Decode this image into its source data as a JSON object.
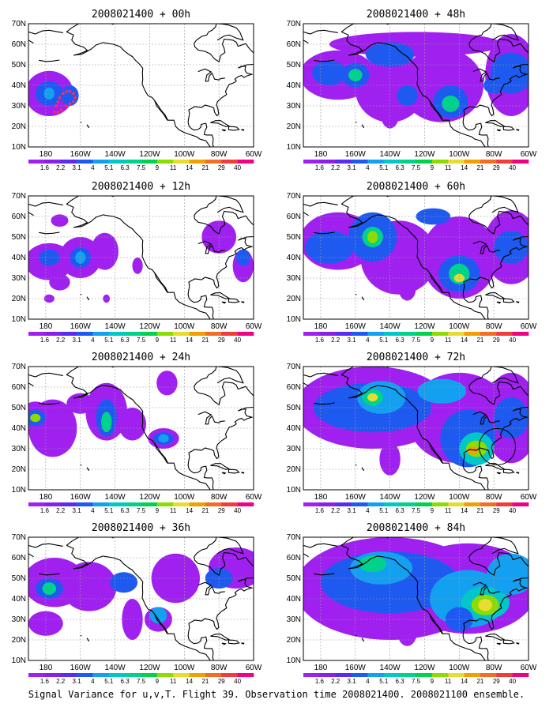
{
  "caption": "Signal Variance for u,v,T. Flight 39. Observation time 2008021400. 2008021100 ensemble.",
  "colorbar": {
    "labels": [
      "1.6",
      "2.2",
      "3.1",
      "4",
      "5.1",
      "6.3",
      "7.5",
      "9",
      "11",
      "14",
      "21",
      "29",
      "40"
    ],
    "colors": [
      "#a020f0",
      "#8a20e6",
      "#5a2cf0",
      "#1e5af0",
      "#14a0f0",
      "#00c8c8",
      "#00d28c",
      "#00d250",
      "#8cdc00",
      "#e6dc32",
      "#f0a000",
      "#f06e28",
      "#f03c3c",
      "#f00082"
    ]
  },
  "axes": {
    "lon_labels": [
      "180",
      "160W",
      "140W",
      "120W",
      "100W",
      "80W",
      "60W"
    ],
    "lat_labels": [
      "10N",
      "20N",
      "30N",
      "40N",
      "50N",
      "60N",
      "70N"
    ]
  },
  "panels": [
    {
      "id": "p00",
      "title": "2008021400 + 00h"
    },
    {
      "id": "p12",
      "title": "2008021400 + 12h"
    },
    {
      "id": "p24",
      "title": "2008021400 + 24h"
    },
    {
      "id": "p36",
      "title": "2008021400 + 36h"
    },
    {
      "id": "p48",
      "title": "2008021400 + 48h"
    },
    {
      "id": "p60",
      "title": "2008021400 + 60h"
    },
    {
      "id": "p72",
      "title": "2008021400 + 72h"
    },
    {
      "id": "p84",
      "title": "2008021400 + 84h"
    }
  ],
  "colors": {
    "purple": "#a020f0",
    "deep_purple": "#7a1ee6",
    "blue": "#1e5af0",
    "light_blue": "#14a0f0",
    "cyan": "#00c8c8",
    "green": "#00d28c",
    "yellowgreen": "#8cdc00",
    "yellow": "#e6dc32",
    "orange": "#f0a000",
    "track_red": "#ff2a6a",
    "coast": "#000000",
    "grid": "#9a9a9a"
  }
}
